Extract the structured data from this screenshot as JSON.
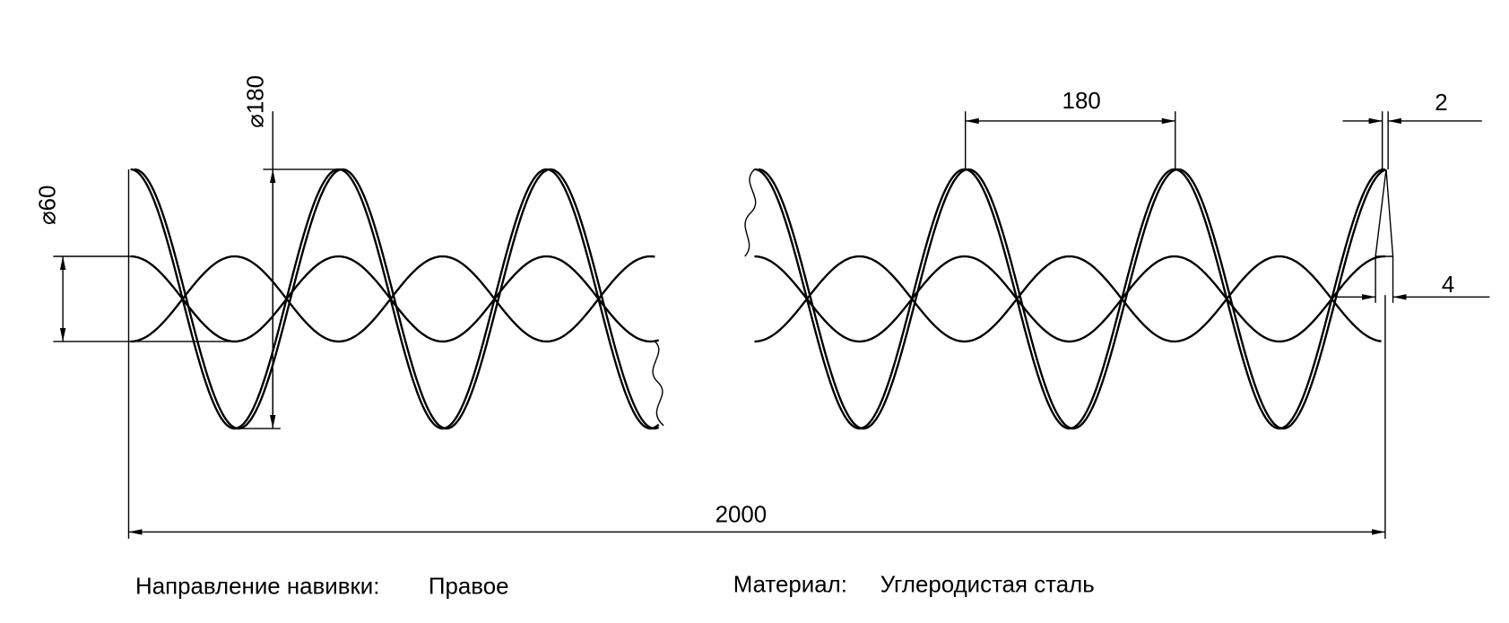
{
  "dimensions": {
    "inner_diameter": "⌀60",
    "outer_diameter": "⌀180",
    "pitch": "180",
    "thickness": "2",
    "edge_width": "4",
    "length": "2000"
  },
  "notes": {
    "direction_label": "Направление навивки:",
    "direction_value": "Правое",
    "material_label": "Материал:",
    "material_value": "Углеродистая сталь"
  }
}
